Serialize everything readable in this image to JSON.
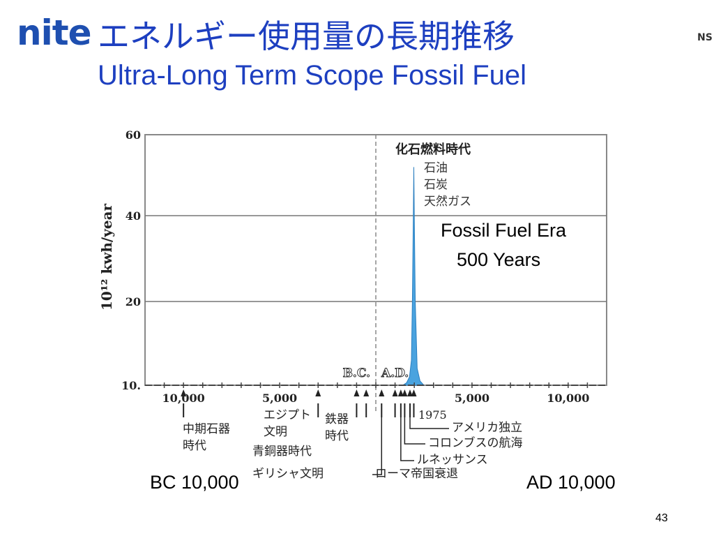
{
  "header": {
    "logo": "nite",
    "title_jp": "エネルギー使用量の長期推移",
    "title_en": "Ultra-Long Term Scope Fossil Fuel",
    "corner_tag": "NS"
  },
  "chart_data": {
    "type": "area",
    "ylabel": "10¹² kwh/year",
    "yticks": [
      "60",
      "40",
      "20",
      "10."
    ],
    "ylim": [
      10,
      60
    ],
    "xlim": [
      -12000,
      12000
    ],
    "xticks": [
      {
        "x": -10000,
        "label": "10,000"
      },
      {
        "x": -5000,
        "label": "5,000"
      },
      {
        "x": 5000,
        "label": "5,000"
      },
      {
        "x": 10000,
        "label": "10,000"
      }
    ],
    "era_markers": [
      "B.C.",
      "A.D."
    ],
    "grid": true,
    "series": [
      {
        "color": "#4aa3df",
        "x": [
          1400,
          1600,
          1750,
          1850,
          1900,
          1950,
          1975,
          2000,
          2050,
          2150,
          2300,
          2500
        ],
        "y": [
          10,
          10.3,
          11,
          13,
          20,
          40,
          52,
          40,
          20,
          12,
          10.5,
          10
        ]
      }
    ],
    "peak_label": "化石燃料時代",
    "peak_sublabels": [
      "石油",
      "石炭",
      "天然ガス"
    ],
    "annotations": [
      {
        "x": -10000,
        "label": "中期石器\n時代"
      },
      {
        "x": -3000,
        "label": "エジプト\n文明"
      },
      {
        "x": -1000,
        "label": "鉄器\n時代"
      },
      {
        "x": -500,
        "label": "ギリシャ文明"
      },
      {
        "x": 300,
        "label": "ローマ帝国衰退"
      },
      {
        "x": 1500,
        "label": "ルネッサンス"
      },
      {
        "x": 1492,
        "label": "コロンブスの航海"
      },
      {
        "x": 1776,
        "label": "アメリカ独立"
      },
      {
        "x": 1975,
        "label": "1975"
      },
      {
        "x": -2000,
        "label": "青銅器時代"
      }
    ]
  },
  "overlay": {
    "era_line1": "Fossil Fuel Era",
    "era_line2": "500 Years",
    "bc_label": "BC 10,000",
    "ad_label": "AD 10,000"
  },
  "page_number": "43"
}
